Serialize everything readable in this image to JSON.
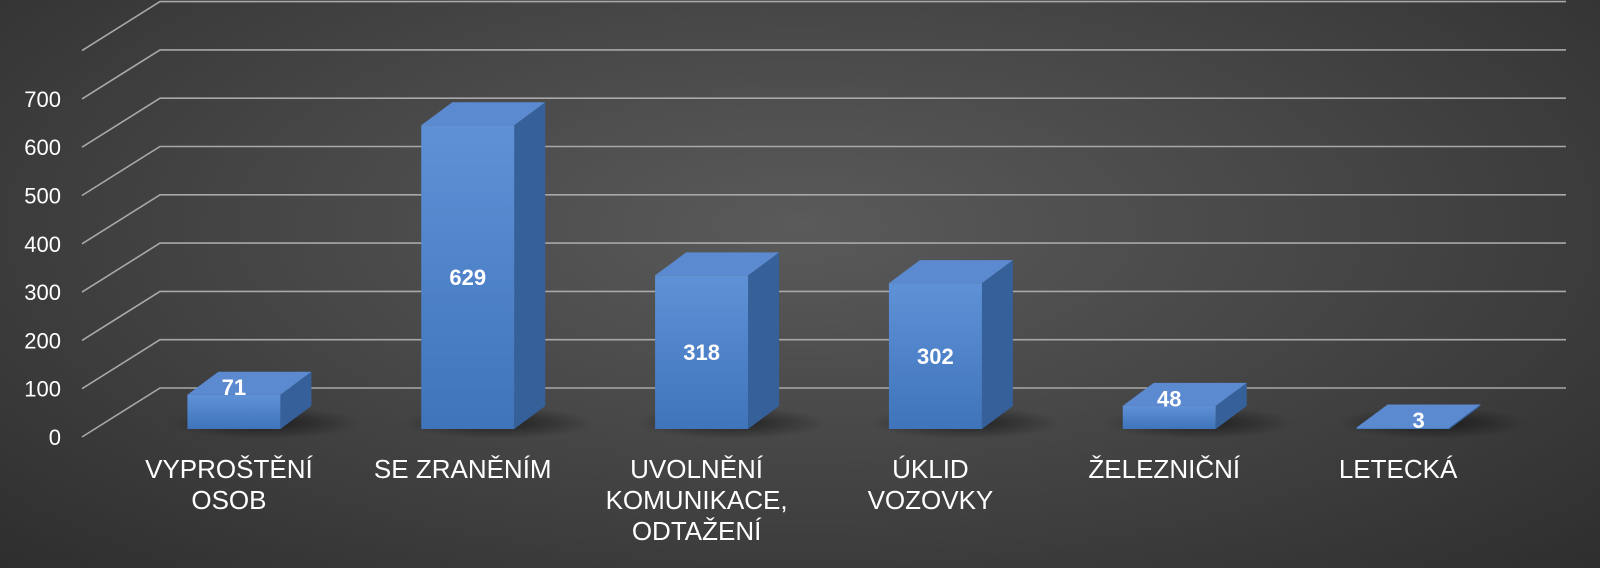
{
  "chart_data": {
    "type": "bar",
    "categories": [
      [
        "VYPROŠTĚNÍ",
        "OSOB"
      ],
      [
        "SE ZRANĚNÍM"
      ],
      [
        "UVOLNĚNÍ",
        "KOMUNIKACE,",
        "ODTAŽENÍ"
      ],
      [
        "ÚKLID",
        "VOZOVKY"
      ],
      [
        "ŽELEZNIČNÍ"
      ],
      [
        "LETECKÁ"
      ]
    ],
    "values": [
      71,
      629,
      318,
      302,
      48,
      3
    ],
    "ylim": [
      0,
      700
    ],
    "yticks": [
      0,
      100,
      200,
      300,
      400,
      500,
      600,
      700
    ],
    "grid": true,
    "style": "3d-column",
    "colors": {
      "bar_front": "#4a7fc4",
      "bar_top": "#5b8ad0",
      "bar_side": "#35609a",
      "grid": "#a8a8a8",
      "text": "#ffffff"
    }
  }
}
